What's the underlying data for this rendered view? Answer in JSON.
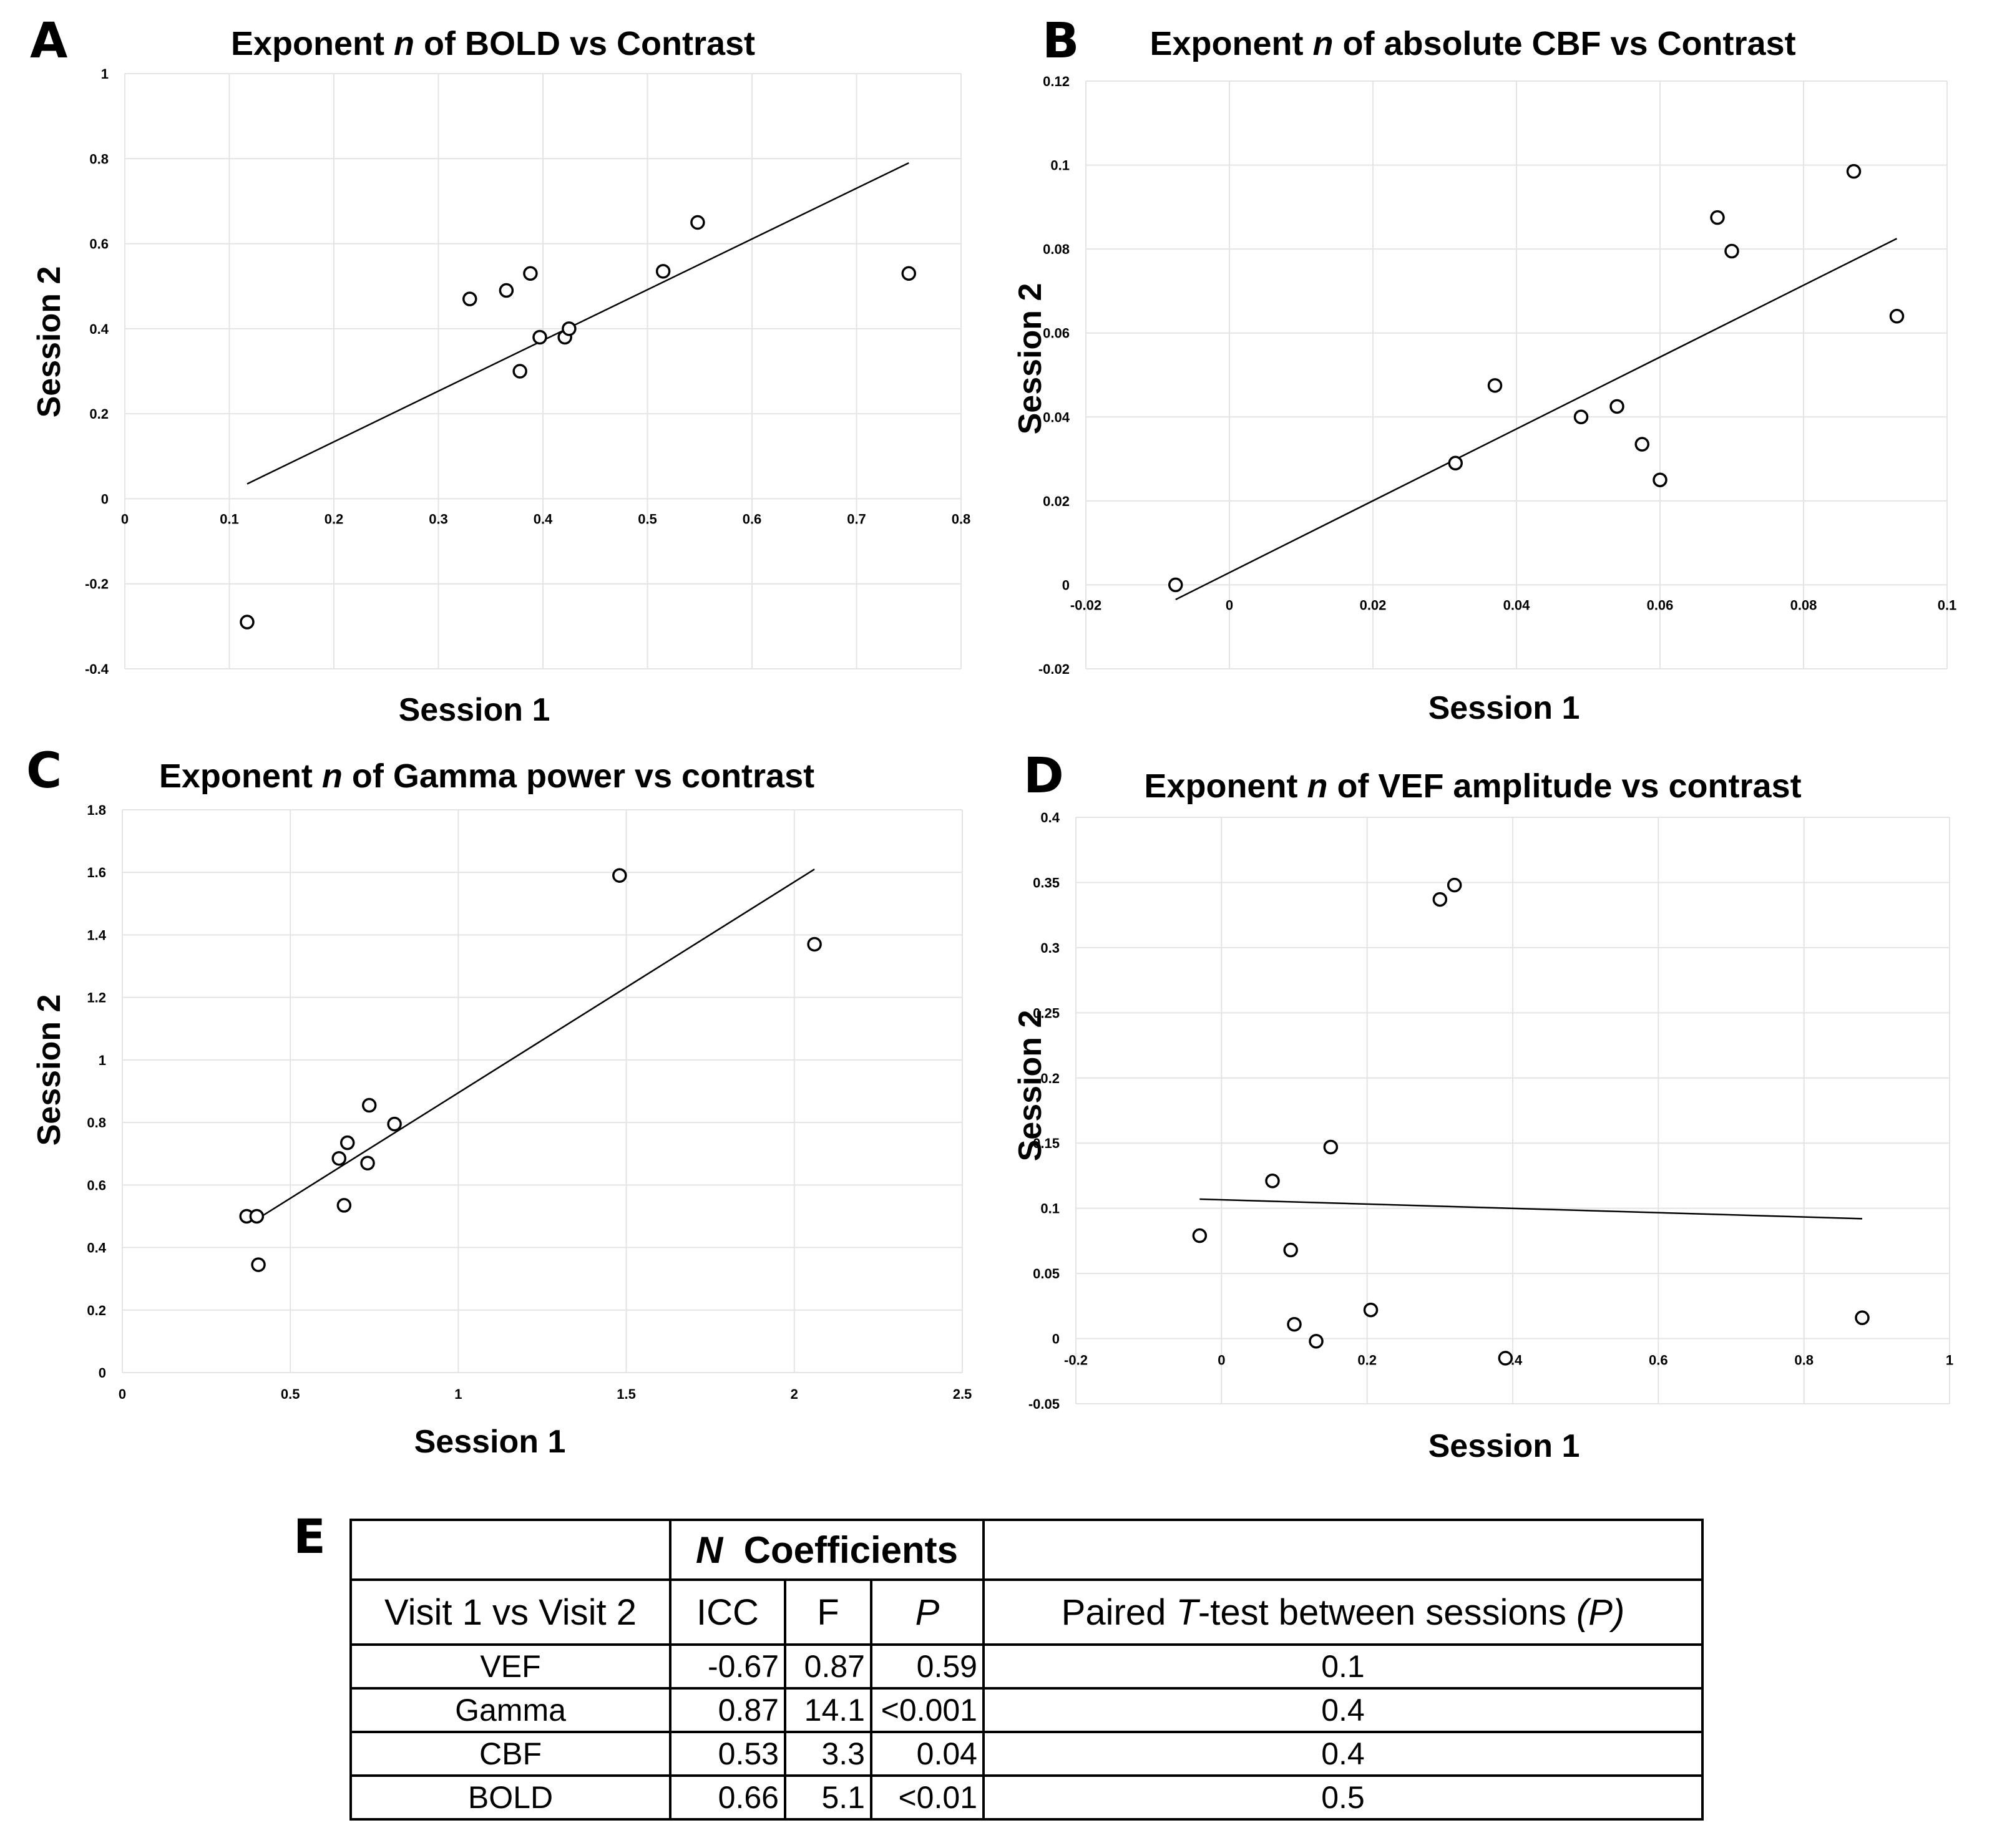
{
  "panels": [
    {
      "label": "A",
      "title_prefix": "Exponent ",
      "title_var": "n",
      "title_suffix": " of BOLD vs Contrast"
    },
    {
      "label": "B",
      "title_prefix": "Exponent ",
      "title_var": "n",
      "title_suffix": " of absolute CBF vs Contrast"
    },
    {
      "label": "C",
      "title_prefix": "Exponent ",
      "title_var": "n",
      "title_suffix": " of Gamma power vs contrast"
    },
    {
      "label": "D",
      "title_prefix": "Exponent ",
      "title_var": "n",
      "title_suffix": " of VEF amplitude vs contrast"
    }
  ],
  "chart_data": [
    {
      "type": "scatter",
      "title": "Exponent n of BOLD vs Contrast",
      "xlabel": "Session 1",
      "ylabel": "Session 2",
      "xlim": [
        0,
        0.8
      ],
      "ylim": [
        -0.4,
        1
      ],
      "xticks": [
        0,
        0.1,
        0.2,
        0.3,
        0.4,
        0.5,
        0.6,
        0.7,
        0.8
      ],
      "yticks": [
        -0.4,
        -0.2,
        0,
        0.2,
        0.4,
        0.6,
        0.8,
        1
      ],
      "xtick_labels": [
        "0",
        "0.1",
        "0.2",
        "0.3",
        "0.4",
        "0.5",
        "0.6",
        "0.7",
        "0.8"
      ],
      "ytick_labels": [
        "-0.4",
        "-0.2",
        "0",
        "0.2",
        "0.4",
        "0.6",
        "0.8",
        "1"
      ],
      "x": [
        0.117,
        0.33,
        0.365,
        0.378,
        0.388,
        0.397,
        0.421,
        0.425,
        0.515,
        0.548,
        0.75
      ],
      "y": [
        -0.29,
        0.47,
        0.49,
        0.3,
        0.53,
        0.38,
        0.38,
        0.4,
        0.535,
        0.65,
        0.53
      ],
      "fit_line": {
        "x": [
          0.117,
          0.75
        ],
        "y": [
          0.035,
          0.79
        ]
      }
    },
    {
      "type": "scatter",
      "title": "Exponent n of absolute CBF vs Contrast",
      "xlabel": "Session 1",
      "ylabel": "Session 2",
      "xlim": [
        -0.02,
        0.1
      ],
      "ylim": [
        -0.02,
        0.12
      ],
      "xticks": [
        -0.02,
        0,
        0.02,
        0.04,
        0.06,
        0.08,
        0.1
      ],
      "yticks": [
        -0.02,
        0,
        0.02,
        0.04,
        0.06,
        0.08,
        0.1,
        0.12
      ],
      "xtick_labels": [
        "-0.02",
        "0",
        "0.02",
        "0.04",
        "0.06",
        "0.08",
        "0.1"
      ],
      "ytick_labels": [
        "-0.02",
        "0",
        "0.02",
        "0.04",
        "0.06",
        "0.08",
        "0.1",
        "0.12"
      ],
      "x": [
        -0.0075,
        0.0315,
        0.037,
        0.049,
        0.054,
        0.0575,
        0.06,
        0.068,
        0.07,
        0.087,
        0.093
      ],
      "y": [
        0,
        0.029,
        0.0475,
        0.04,
        0.0425,
        0.0335,
        0.025,
        0.0875,
        0.0795,
        0.0985,
        0.064
      ],
      "fit_line": {
        "x": [
          -0.0075,
          0.093
        ],
        "y": [
          -0.0035,
          0.0825
        ]
      }
    },
    {
      "type": "scatter",
      "title": "Exponent n of Gamma power vs contrast",
      "xlabel": "Session 1",
      "ylabel": "Session 2",
      "xlim": [
        0,
        2.5
      ],
      "ylim": [
        0,
        1.8
      ],
      "xticks": [
        0,
        0.5,
        1,
        1.5,
        2,
        2.5
      ],
      "yticks": [
        0,
        0.2,
        0.4,
        0.6,
        0.8,
        1,
        1.2,
        1.4,
        1.6,
        1.8
      ],
      "xtick_labels": [
        "0",
        "0.5",
        "1",
        "1.5",
        "2",
        "2.5"
      ],
      "ytick_labels": [
        "0",
        "0.2",
        "0.4",
        "0.6",
        "0.8",
        "1",
        "1.2",
        "1.4",
        "1.6",
        "1.8"
      ],
      "x": [
        0.37,
        0.4,
        0.405,
        0.645,
        0.66,
        0.67,
        0.73,
        0.735,
        0.81,
        1.48,
        2.06
      ],
      "y": [
        0.5,
        0.5,
        0.345,
        0.685,
        0.535,
        0.735,
        0.67,
        0.855,
        0.795,
        1.59,
        1.37
      ],
      "fit_line": {
        "x": [
          0.4,
          2.06
        ],
        "y": [
          0.49,
          1.61
        ]
      }
    },
    {
      "type": "scatter",
      "title": "Exponent n of VEF amplitude vs contrast",
      "xlabel": "Session 1",
      "ylabel": "Session 2",
      "xlim": [
        -0.2,
        1
      ],
      "ylim": [
        -0.05,
        0.4
      ],
      "xticks": [
        -0.2,
        0,
        0.2,
        0.4,
        0.6,
        0.8,
        1
      ],
      "yticks": [
        -0.05,
        0,
        0.05,
        0.1,
        0.15,
        0.2,
        0.25,
        0.3,
        0.35,
        0.4
      ],
      "xtick_labels": [
        "-0.2",
        "0",
        "0.2",
        "0.4",
        "0.6",
        "0.8",
        "1"
      ],
      "ytick_labels": [
        "-0.05",
        "0",
        "0.05",
        "0.1",
        "0.15",
        "0.2",
        "0.25",
        "0.3",
        "0.35",
        "0.4"
      ],
      "x": [
        -0.03,
        0.07,
        0.095,
        0.1,
        0.13,
        0.15,
        0.205,
        0.3,
        0.32,
        0.39,
        0.88
      ],
      "y": [
        0.079,
        0.121,
        0.068,
        0.011,
        -0.002,
        0.147,
        0.022,
        0.337,
        0.348,
        -0.015,
        0.016
      ],
      "fit_line": {
        "x": [
          -0.03,
          0.88
        ],
        "y": [
          0.107,
          0.092
        ]
      }
    }
  ],
  "table": {
    "label": "E",
    "group_header_var": "N",
    "group_header_suffix": "Coefficients",
    "columns": {
      "visit": "Visit 1 vs Visit 2",
      "icc": "ICC",
      "f": "F",
      "p": "P",
      "ttest_prefix": "Paired ",
      "ttest_var": "T",
      "ttest_mid": "-test between sessions ",
      "ttest_p": "(P)"
    },
    "rows": [
      {
        "name": "VEF",
        "icc": "-0.67",
        "f": "0.87",
        "p": "0.59",
        "ttest": "0.1"
      },
      {
        "name": "Gamma",
        "icc": "0.87",
        "f": "14.1",
        "p": "<0.001",
        "ttest": "0.4"
      },
      {
        "name": "CBF",
        "icc": "0.53",
        "f": "3.3",
        "p": "0.04",
        "ttest": "0.4"
      },
      {
        "name": "BOLD",
        "icc": "0.66",
        "f": "5.1",
        "p": "<0.01",
        "ttest": "0.5"
      }
    ]
  }
}
